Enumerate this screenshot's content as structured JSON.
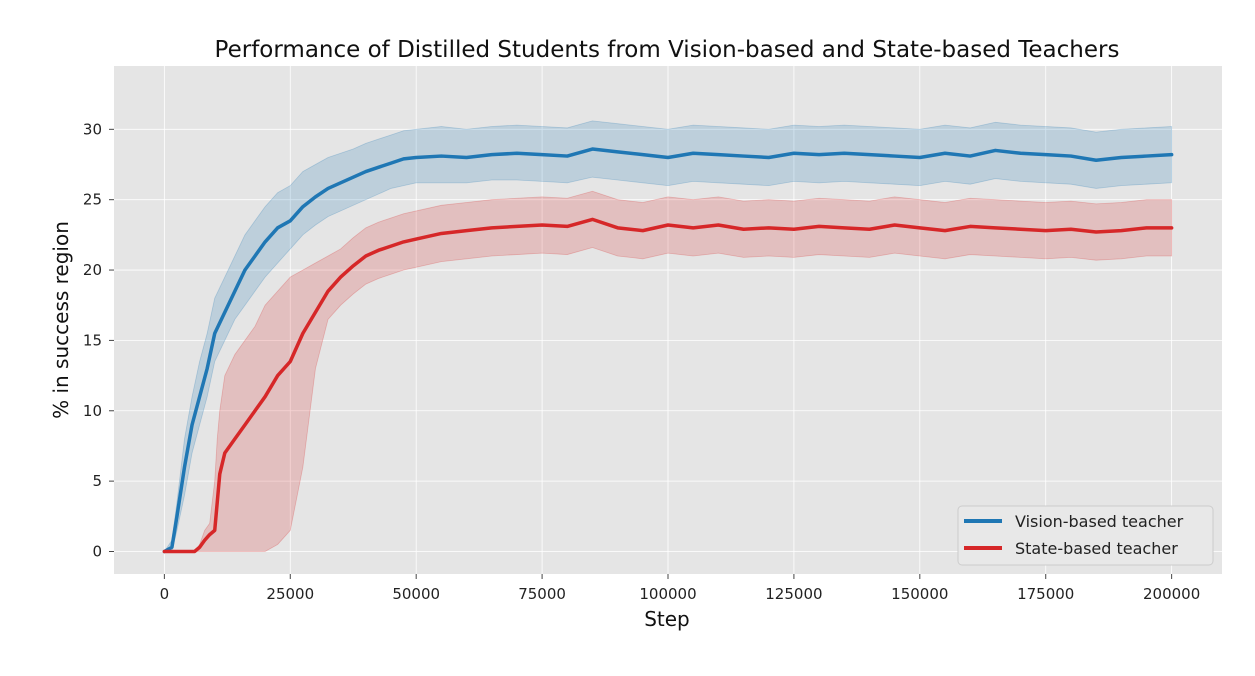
{
  "chart_data": {
    "type": "line",
    "title": "Performance of Distilled Students from Vision-based and State-based Teachers",
    "xlabel": "Step",
    "ylabel": "% in success region",
    "xlim": [
      -10000,
      210000
    ],
    "ylim": [
      -1.6,
      34.5
    ],
    "xticks": [
      0,
      25000,
      50000,
      75000,
      100000,
      125000,
      150000,
      175000,
      200000
    ],
    "yticks": [
      0,
      5,
      10,
      15,
      20,
      25,
      30
    ],
    "grid": true,
    "legend_position": "lower-right",
    "series": [
      {
        "name": "Vision-based teacher",
        "color": "#1f77b4",
        "band_color": "#1f77b4",
        "x": [
          0,
          1500,
          2500,
          4000,
          5500,
          7000,
          8500,
          10000,
          12000,
          14000,
          16000,
          18000,
          20000,
          22500,
          25000,
          27500,
          30000,
          32500,
          35000,
          37500,
          40000,
          42500,
          45000,
          47500,
          50000,
          55000,
          60000,
          65000,
          70000,
          75000,
          80000,
          85000,
          90000,
          95000,
          100000,
          105000,
          110000,
          115000,
          120000,
          125000,
          130000,
          135000,
          140000,
          145000,
          150000,
          155000,
          160000,
          165000,
          170000,
          175000,
          180000,
          185000,
          190000,
          195000,
          200000
        ],
        "y": [
          0,
          0.3,
          2.5,
          6,
          9,
          11,
          13,
          15.5,
          17,
          18.5,
          20,
          21,
          22,
          23,
          23.5,
          24.5,
          25.2,
          25.8,
          26.2,
          26.6,
          27,
          27.3,
          27.6,
          27.9,
          28,
          28.1,
          28,
          28.2,
          28.3,
          28.2,
          28.1,
          28.6,
          28.4,
          28.2,
          28.0,
          28.3,
          28.2,
          28.1,
          28.0,
          28.3,
          28.2,
          28.3,
          28.2,
          28.1,
          28.0,
          28.3,
          28.1,
          28.5,
          28.3,
          28.2,
          28.1,
          27.8,
          28.0,
          28.1,
          28.2
        ],
        "lower": [
          0,
          0,
          1.5,
          4,
          7,
          9,
          11,
          13.5,
          15,
          16.5,
          17.5,
          18.5,
          19.5,
          20.5,
          21.5,
          22.5,
          23.2,
          23.8,
          24.2,
          24.6,
          25,
          25.4,
          25.8,
          26,
          26.2,
          26.2,
          26.2,
          26.4,
          26.4,
          26.3,
          26.2,
          26.6,
          26.4,
          26.2,
          26.0,
          26.3,
          26.2,
          26.1,
          26.0,
          26.3,
          26.2,
          26.3,
          26.2,
          26.1,
          26.0,
          26.3,
          26.1,
          26.5,
          26.3,
          26.2,
          26.1,
          25.8,
          26.0,
          26.1,
          26.2
        ],
        "upper": [
          0,
          0.8,
          3.5,
          8,
          11,
          13.5,
          15.5,
          18,
          19.5,
          21,
          22.5,
          23.5,
          24.5,
          25.5,
          26,
          27,
          27.5,
          28,
          28.3,
          28.6,
          29,
          29.3,
          29.6,
          29.9,
          30,
          30.2,
          30,
          30.2,
          30.3,
          30.2,
          30.1,
          30.6,
          30.4,
          30.2,
          30.0,
          30.3,
          30.2,
          30.1,
          30.0,
          30.3,
          30.2,
          30.3,
          30.2,
          30.1,
          30.0,
          30.3,
          30.1,
          30.5,
          30.3,
          30.2,
          30.1,
          29.8,
          30.0,
          30.1,
          30.2
        ]
      },
      {
        "name": "State-based teacher",
        "color": "#d62728",
        "band_color": "#d62728",
        "x": [
          0,
          3000,
          6000,
          7000,
          8000,
          9000,
          10000,
          10500,
          11000,
          12000,
          14000,
          16000,
          18000,
          20000,
          22500,
          25000,
          27500,
          30000,
          32500,
          35000,
          37500,
          40000,
          42500,
          45000,
          47500,
          50000,
          55000,
          60000,
          65000,
          70000,
          75000,
          80000,
          85000,
          90000,
          95000,
          100000,
          105000,
          110000,
          115000,
          120000,
          125000,
          130000,
          135000,
          140000,
          145000,
          150000,
          155000,
          160000,
          165000,
          170000,
          175000,
          180000,
          185000,
          190000,
          195000,
          200000
        ],
        "y": [
          0,
          0,
          0,
          0.3,
          0.8,
          1.2,
          1.5,
          3.5,
          5.5,
          7,
          8,
          9,
          10,
          11,
          12.5,
          13.5,
          15.5,
          17,
          18.5,
          19.5,
          20.3,
          21,
          21.4,
          21.7,
          22,
          22.2,
          22.6,
          22.8,
          23,
          23.1,
          23.2,
          23.1,
          23.6,
          23.0,
          22.8,
          23.2,
          23.0,
          23.2,
          22.9,
          23.0,
          22.9,
          23.1,
          23.0,
          22.9,
          23.2,
          23.0,
          22.8,
          23.1,
          23.0,
          22.9,
          22.8,
          22.9,
          22.7,
          22.8,
          23.0,
          23.0
        ],
        "lower": [
          0,
          0,
          0,
          0,
          0,
          0,
          0,
          0,
          0,
          0,
          0,
          0,
          0,
          0,
          0.5,
          1.5,
          6,
          13,
          16.5,
          17.5,
          18.3,
          19,
          19.4,
          19.7,
          20,
          20.2,
          20.6,
          20.8,
          21,
          21.1,
          21.2,
          21.1,
          21.6,
          21.0,
          20.8,
          21.2,
          21.0,
          21.2,
          20.9,
          21.0,
          20.9,
          21.1,
          21.0,
          20.9,
          21.2,
          21.0,
          20.8,
          21.1,
          21.0,
          20.9,
          20.8,
          20.9,
          20.7,
          20.8,
          21.0,
          21.0
        ],
        "upper": [
          0,
          0,
          0,
          0.5,
          1.5,
          2,
          5,
          8,
          10,
          12.5,
          14,
          15,
          16,
          17.5,
          18.5,
          19.5,
          20,
          20.5,
          21,
          21.5,
          22.3,
          23,
          23.4,
          23.7,
          24,
          24.2,
          24.6,
          24.8,
          25,
          25.1,
          25.2,
          25.1,
          25.6,
          25.0,
          24.8,
          25.2,
          25.0,
          25.2,
          24.9,
          25.0,
          24.9,
          25.1,
          25.0,
          24.9,
          25.2,
          25.0,
          24.8,
          25.1,
          25.0,
          24.9,
          24.8,
          24.9,
          24.7,
          24.8,
          25.0,
          25.0
        ]
      }
    ]
  },
  "style": {
    "plot_background": "#e5e5e5",
    "grid_color": "#ffffff"
  }
}
